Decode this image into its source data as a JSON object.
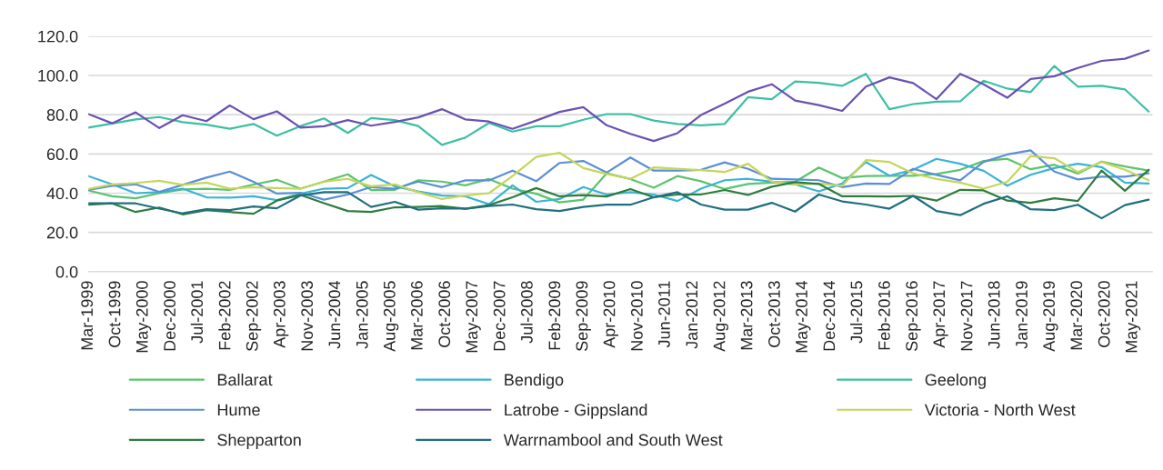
{
  "chart_data": {
    "type": "line",
    "x": [
      "1999-03",
      "1999-09",
      "2000-03",
      "2000-09",
      "2001-03",
      "2001-09",
      "2002-03",
      "2002-09",
      "2003-03",
      "2003-09",
      "2004-03",
      "2004-09",
      "2005-03",
      "2005-09",
      "2006-03",
      "2006-09",
      "2007-03",
      "2007-09",
      "2008-03",
      "2008-09",
      "2009-03",
      "2009-09",
      "2010-03",
      "2010-09",
      "2011-03",
      "2011-09",
      "2012-03",
      "2012-09",
      "2013-03",
      "2013-09",
      "2014-03",
      "2014-09",
      "2015-03",
      "2015-09",
      "2016-03",
      "2016-09",
      "2017-03",
      "2017-09",
      "2018-03",
      "2018-09",
      "2019-03",
      "2019-09",
      "2020-03",
      "2020-09",
      "2021-03",
      "2021-09"
    ],
    "series": [
      {
        "name": "Ballarat",
        "color": "#5cc46c",
        "values": [
          41.4,
          38.4,
          37.4,
          40.0,
          41.9,
          42.3,
          41.7,
          44.4,
          46.8,
          42.3,
          45.9,
          49.6,
          41.6,
          41.7,
          46.6,
          45.9,
          44.0,
          47.2,
          42.3,
          39.7,
          35.3,
          36.7,
          50.1,
          47.2,
          42.8,
          48.7,
          46.1,
          42.1,
          44.7,
          45.4,
          45.8,
          53.1,
          47.7,
          48.7,
          48.9,
          48.9,
          49.8,
          51.9,
          56.4,
          57.5,
          52.2,
          54.5,
          50.0,
          56.1,
          53.6,
          51.5
        ]
      },
      {
        "name": "Bendigo",
        "color": "#3bb3d6",
        "values": [
          48.7,
          44.5,
          40.0,
          40.5,
          42.3,
          37.9,
          37.7,
          38.4,
          36.5,
          39.7,
          42.3,
          42.6,
          49.3,
          43.5,
          40.9,
          38.8,
          38.4,
          34.4,
          44.0,
          35.6,
          37.0,
          43.1,
          39.3,
          40.5,
          39.3,
          36.0,
          42.3,
          46.6,
          47.3,
          45.8,
          44.5,
          40.9,
          44.9,
          55.9,
          48.9,
          51.9,
          57.5,
          55.0,
          51.4,
          43.8,
          49.4,
          52.8,
          55.0,
          53.3,
          45.4,
          44.9
        ]
      },
      {
        "name": "Geelong",
        "color": "#3cbfa4",
        "values": [
          73.4,
          75.5,
          77.6,
          78.8,
          76.2,
          74.9,
          72.8,
          75.3,
          69.3,
          74.2,
          78.1,
          70.7,
          78.3,
          77.2,
          74.2,
          64.6,
          68.3,
          75.8,
          71.4,
          74.1,
          74.1,
          77.4,
          80.3,
          80.3,
          77.0,
          75.3,
          74.6,
          75.3,
          88.9,
          87.9,
          96.9,
          96.2,
          94.7,
          100.8,
          82.8,
          85.4,
          86.6,
          86.8,
          97.3,
          93.3,
          91.5,
          104.8,
          94.3,
          94.7,
          92.9,
          81.6
        ]
      },
      {
        "name": "Hume",
        "color": "#5b8fd6",
        "values": [
          41.7,
          43.7,
          44.5,
          40.7,
          44.2,
          47.9,
          51.0,
          45.8,
          39.8,
          40.2,
          36.7,
          39.3,
          43.1,
          42.3,
          45.9,
          43.1,
          46.5,
          46.5,
          51.5,
          46.1,
          55.4,
          56.4,
          50.5,
          58.2,
          51.5,
          51.5,
          51.9,
          55.7,
          52.4,
          47.3,
          47.0,
          46.6,
          43.1,
          44.9,
          44.7,
          52.4,
          49.3,
          46.5,
          55.9,
          59.7,
          61.8,
          51.0,
          47.0,
          48.4,
          48.4,
          50.1
        ]
      },
      {
        "name": "Latrobe - Gippsland",
        "color": "#6a52b0",
        "values": [
          80.3,
          75.6,
          81.2,
          73.2,
          79.7,
          76.7,
          84.7,
          77.7,
          81.7,
          73.4,
          74.1,
          77.2,
          74.4,
          76.3,
          78.6,
          82.8,
          77.6,
          76.5,
          72.8,
          77.0,
          81.4,
          83.8,
          74.6,
          70.2,
          66.6,
          70.6,
          79.8,
          85.6,
          91.7,
          95.5,
          87.2,
          84.9,
          81.9,
          94.3,
          99.0,
          96.1,
          87.9,
          100.8,
          95.5,
          88.6,
          98.2,
          99.6,
          103.8,
          107.4,
          108.5,
          112.7
        ]
      },
      {
        "name": "Victoria - North West",
        "color": "#c5d65a",
        "values": [
          42.1,
          44.5,
          45.2,
          46.3,
          44.2,
          45.4,
          42.3,
          43.0,
          42.6,
          42.3,
          45.8,
          47.3,
          43.5,
          44.5,
          40.5,
          37.0,
          38.8,
          40.0,
          48.7,
          58.5,
          60.6,
          52.8,
          49.8,
          47.3,
          53.1,
          52.4,
          51.7,
          50.8,
          55.0,
          45.9,
          44.4,
          44.9,
          43.7,
          56.8,
          55.9,
          50.1,
          47.2,
          45.4,
          42.3,
          45.8,
          58.9,
          57.8,
          50.7,
          55.9,
          51.9,
          46.6
        ]
      },
      {
        "name": "Shepparton",
        "color": "#2e7d3e",
        "values": [
          34.1,
          34.8,
          30.4,
          32.7,
          29.2,
          31.4,
          30.4,
          29.5,
          36.2,
          39.1,
          34.9,
          30.9,
          30.4,
          32.8,
          33.0,
          33.4,
          32.1,
          33.9,
          37.9,
          42.6,
          38.4,
          39.0,
          38.3,
          42.1,
          37.9,
          39.3,
          39.3,
          41.6,
          39.1,
          43.3,
          45.6,
          44.7,
          38.4,
          38.4,
          38.3,
          38.6,
          36.2,
          41.7,
          41.4,
          36.2,
          35.1,
          37.4,
          36.0,
          51.5,
          41.2,
          51.9
        ]
      },
      {
        "name": "Warrnambool and South West",
        "color": "#1f6f80",
        "values": [
          34.9,
          34.8,
          34.8,
          32.1,
          29.7,
          31.8,
          31.4,
          33.2,
          32.3,
          38.8,
          40.5,
          40.5,
          33.0,
          35.6,
          31.6,
          32.3,
          32.1,
          33.4,
          34.2,
          31.8,
          30.9,
          33.0,
          34.1,
          34.1,
          37.9,
          40.5,
          34.2,
          31.6,
          31.6,
          35.1,
          30.6,
          39.3,
          35.8,
          34.2,
          32.1,
          38.6,
          30.9,
          28.8,
          34.6,
          38.4,
          31.8,
          31.4,
          34.1,
          27.2,
          33.9,
          36.7
        ]
      }
    ],
    "xlim": [
      "1999-03",
      "2021-10"
    ],
    "xticks": [
      {
        "value": "1999-03",
        "label": "Mar-1999"
      },
      {
        "value": "1999-10",
        "label": "Oct-1999"
      },
      {
        "value": "2000-05",
        "label": "May-2000"
      },
      {
        "value": "2000-12",
        "label": "Dec-2000"
      },
      {
        "value": "2001-07",
        "label": "Jul-2001"
      },
      {
        "value": "2002-02",
        "label": "Feb-2002"
      },
      {
        "value": "2002-09",
        "label": "Sep-2002"
      },
      {
        "value": "2003-04",
        "label": "Apr-2003"
      },
      {
        "value": "2003-11",
        "label": "Nov-2003"
      },
      {
        "value": "2004-06",
        "label": "Jun-2004"
      },
      {
        "value": "2005-01",
        "label": "Jan-2005"
      },
      {
        "value": "2005-08",
        "label": "Aug-2005"
      },
      {
        "value": "2006-03",
        "label": "Mar-2006"
      },
      {
        "value": "2006-10",
        "label": "Oct-2006"
      },
      {
        "value": "2007-05",
        "label": "May-2007"
      },
      {
        "value": "2007-12",
        "label": "Dec-2007"
      },
      {
        "value": "2008-07",
        "label": "Jul-2008"
      },
      {
        "value": "2009-02",
        "label": "Feb-2009"
      },
      {
        "value": "2009-09",
        "label": "Sep-2009"
      },
      {
        "value": "2010-04",
        "label": "Apr-2010"
      },
      {
        "value": "2010-11",
        "label": "Nov-2010"
      },
      {
        "value": "2011-06",
        "label": "Jun-2011"
      },
      {
        "value": "2012-01",
        "label": "Jan-2012"
      },
      {
        "value": "2012-08",
        "label": "Aug-2012"
      },
      {
        "value": "2013-03",
        "label": "Mar-2013"
      },
      {
        "value": "2013-10",
        "label": "Oct-2013"
      },
      {
        "value": "2014-05",
        "label": "May-2014"
      },
      {
        "value": "2014-12",
        "label": "Dec-2014"
      },
      {
        "value": "2015-07",
        "label": "Jul-2015"
      },
      {
        "value": "2016-02",
        "label": "Feb-2016"
      },
      {
        "value": "2016-09",
        "label": "Sep-2016"
      },
      {
        "value": "2017-04",
        "label": "Apr-2017"
      },
      {
        "value": "2017-11",
        "label": "Nov-2017"
      },
      {
        "value": "2018-06",
        "label": "Jun-2018"
      },
      {
        "value": "2019-01",
        "label": "Jan-2019"
      },
      {
        "value": "2019-08",
        "label": "Aug-2019"
      },
      {
        "value": "2020-03",
        "label": "Mar-2020"
      },
      {
        "value": "2020-10",
        "label": "Oct-2020"
      },
      {
        "value": "2021-05",
        "label": "May-2021"
      }
    ],
    "ylim": [
      0,
      120
    ],
    "yticks": [
      {
        "value": 0,
        "label": "0.0"
      },
      {
        "value": 20,
        "label": "20.0"
      },
      {
        "value": 40,
        "label": "40.0"
      },
      {
        "value": 60,
        "label": "60.0"
      },
      {
        "value": 80,
        "label": "80.0"
      },
      {
        "value": 100,
        "label": "100.0"
      },
      {
        "value": 120,
        "label": "120.0"
      }
    ],
    "grid": "y",
    "legend": "bottom",
    "marker": "none",
    "line_style": "solid"
  }
}
